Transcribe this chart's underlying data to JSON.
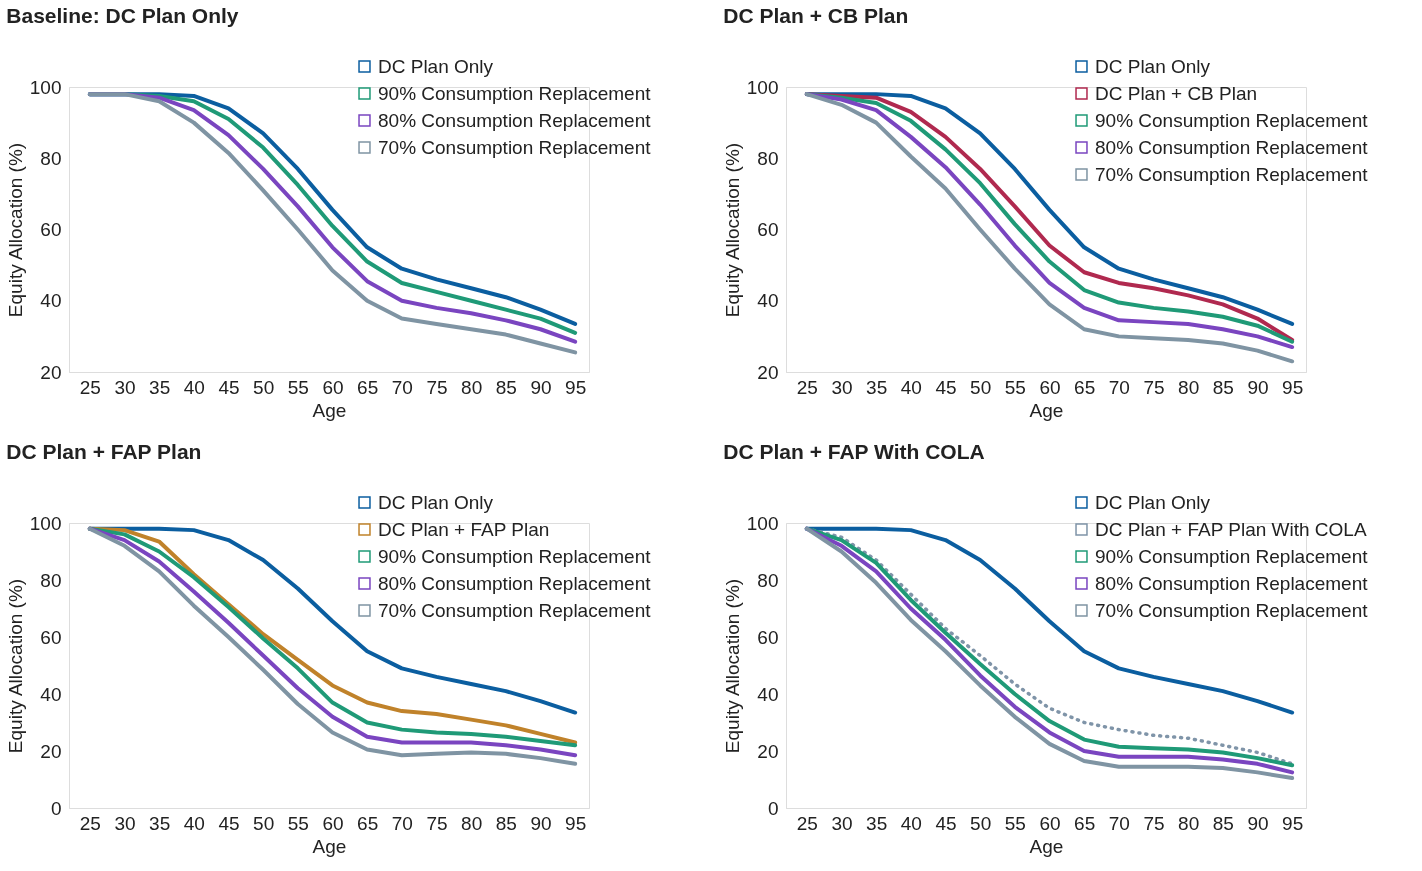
{
  "chart_data": [
    {
      "type": "line",
      "title": "Baseline: DC Plan Only",
      "xlabel": "Age",
      "ylabel": "Equity Allocation (%)",
      "x": [
        25,
        30,
        35,
        40,
        45,
        50,
        55,
        60,
        65,
        70,
        75,
        80,
        85,
        90,
        95
      ],
      "xlim": [
        22,
        97
      ],
      "xticks": [
        25,
        30,
        35,
        40,
        45,
        50,
        55,
        60,
        65,
        70,
        75,
        80,
        85,
        90,
        95
      ],
      "ylim": [
        20,
        100
      ],
      "yticks": [
        20,
        40,
        60,
        80,
        100
      ],
      "grid": false,
      "legend": "top right",
      "series": [
        {
          "name": "DC Plan Only",
          "color": "#0b5ea0",
          "values": [
            98,
            98,
            98,
            97.5,
            94,
            87,
            77,
            65.5,
            55,
            49,
            46,
            43.5,
            41,
            37.5,
            33.5
          ]
        },
        {
          "name": "90% Consumption Replacement",
          "color": "#1f9a77",
          "values": [
            98,
            98,
            97.5,
            96,
            91,
            83,
            72.5,
            61,
            51,
            45,
            42.5,
            40,
            37.5,
            35,
            31
          ]
        },
        {
          "name": "80% Consumption Replacement",
          "color": "#7a45c0",
          "values": [
            98,
            98,
            97,
            93.5,
            86.5,
            77,
            66.5,
            55,
            45.5,
            40,
            38,
            36.5,
            34.5,
            32,
            28.5
          ]
        },
        {
          "name": "70% Consumption Replacement",
          "color": "#7f94a3",
          "values": [
            98,
            98,
            96,
            90,
            81.5,
            71,
            60,
            48.5,
            40,
            35,
            33.5,
            32,
            30.5,
            28,
            25.5
          ]
        }
      ]
    },
    {
      "type": "line",
      "title": "DC Plan + CB Plan",
      "xlabel": "Age",
      "ylabel": "Equity Allocation (%)",
      "x": [
        25,
        30,
        35,
        40,
        45,
        50,
        55,
        60,
        65,
        70,
        75,
        80,
        85,
        90,
        95
      ],
      "xlim": [
        22,
        97
      ],
      "xticks": [
        25,
        30,
        35,
        40,
        45,
        50,
        55,
        60,
        65,
        70,
        75,
        80,
        85,
        90,
        95
      ],
      "ylim": [
        20,
        100
      ],
      "yticks": [
        20,
        40,
        60,
        80,
        100
      ],
      "grid": false,
      "legend": "top right",
      "series": [
        {
          "name": "DC Plan Only",
          "color": "#0b5ea0",
          "values": [
            98,
            98,
            98,
            97.5,
            94,
            87,
            77,
            65.5,
            55,
            49,
            46,
            43.5,
            41,
            37.5,
            33.5
          ]
        },
        {
          "name": "DC Plan + CB Plan",
          "color": "#b0294f",
          "values": [
            98,
            97.5,
            97,
            93,
            86,
            77,
            66.5,
            55.5,
            48,
            45,
            43.5,
            41.5,
            39,
            35,
            29
          ]
        },
        {
          "name": "90% Consumption Replacement",
          "color": "#1f9a77",
          "values": [
            98,
            97,
            95.5,
            90.5,
            82.5,
            73,
            61.5,
            51,
            43,
            39.5,
            38,
            37,
            35.5,
            33,
            28.5
          ]
        },
        {
          "name": "80% Consumption Replacement",
          "color": "#7a45c0",
          "values": [
            98,
            96.5,
            93.5,
            86,
            77.5,
            67,
            55.5,
            45,
            38,
            34.5,
            34,
            33.5,
            32,
            30,
            27
          ]
        },
        {
          "name": "70% Consumption Replacement",
          "color": "#7f94a3",
          "values": [
            98,
            95,
            90,
            80.5,
            71.5,
            60,
            49,
            39,
            32,
            30,
            29.5,
            29,
            28,
            26,
            23
          ]
        }
      ]
    },
    {
      "type": "line",
      "title": "DC Plan + FAP Plan",
      "xlabel": "Age",
      "ylabel": "Equity Allocation (%)",
      "x": [
        25,
        30,
        35,
        40,
        45,
        50,
        55,
        60,
        65,
        70,
        75,
        80,
        85,
        90,
        95
      ],
      "xlim": [
        22,
        97
      ],
      "xticks": [
        25,
        30,
        35,
        40,
        45,
        50,
        55,
        60,
        65,
        70,
        75,
        80,
        85,
        90,
        95
      ],
      "ylim": [
        0,
        100
      ],
      "yticks": [
        0,
        20,
        40,
        60,
        80,
        100
      ],
      "grid": false,
      "legend": "top right",
      "series": [
        {
          "name": "DC Plan Only",
          "color": "#0b5ea0",
          "values": [
            98,
            98,
            98,
            97.5,
            94,
            87,
            77,
            65.5,
            55,
            49,
            46,
            43.5,
            41,
            37.5,
            33.5
          ]
        },
        {
          "name": "DC Plan + FAP Plan",
          "color": "#c0822a",
          "values": [
            98,
            97.5,
            93.5,
            82,
            71.5,
            61,
            52,
            43,
            37,
            34,
            33,
            31,
            29,
            26,
            23
          ]
        },
        {
          "name": "90% Consumption Replacement",
          "color": "#1f9a77",
          "values": [
            98,
            96,
            90,
            81,
            70.5,
            59.5,
            49,
            37,
            30,
            27.5,
            26.5,
            26,
            25,
            23.5,
            22
          ]
        },
        {
          "name": "80% Consumption Replacement",
          "color": "#7a45c0",
          "values": [
            98,
            94,
            86.5,
            76,
            65,
            53.5,
            42,
            32,
            25,
            23,
            23,
            23,
            22,
            20.5,
            18.5
          ]
        },
        {
          "name": "70% Consumption Replacement",
          "color": "#7f94a3",
          "values": [
            98,
            92,
            83,
            71,
            60,
            48.5,
            36.5,
            26.5,
            20.5,
            18.5,
            19,
            19.5,
            19,
            17.5,
            15.5
          ]
        }
      ]
    },
    {
      "type": "line",
      "title": "DC Plan + FAP With COLA",
      "xlabel": "Age",
      "ylabel": "Equity Allocation (%)",
      "x": [
        25,
        30,
        35,
        40,
        45,
        50,
        55,
        60,
        65,
        70,
        75,
        80,
        85,
        90,
        95
      ],
      "xlim": [
        22,
        97
      ],
      "xticks": [
        25,
        30,
        35,
        40,
        45,
        50,
        55,
        60,
        65,
        70,
        75,
        80,
        85,
        90,
        95
      ],
      "ylim": [
        0,
        100
      ],
      "yticks": [
        0,
        20,
        40,
        60,
        80,
        100
      ],
      "grid": false,
      "legend": "top right",
      "series": [
        {
          "name": "DC Plan Only",
          "color": "#0b5ea0",
          "values": [
            98,
            98,
            98,
            97.5,
            94,
            87,
            77,
            65.5,
            55,
            49,
            46,
            43.5,
            41,
            37.5,
            33.5
          ]
        },
        {
          "name": "DC Plan + FAP Plan With COLA",
          "color": "#7f94a8",
          "line_style": "dotted",
          "values": [
            98,
            95,
            87,
            75,
            63,
            53.5,
            43.5,
            35,
            30,
            27.5,
            25.5,
            24.5,
            22,
            19.5,
            15.5
          ]
        },
        {
          "name": "90% Consumption Replacement",
          "color": "#1f9a77",
          "values": [
            98,
            94,
            86,
            73,
            61.5,
            50.5,
            40,
            30.5,
            24,
            21.5,
            21,
            20.5,
            19.5,
            17.5,
            15
          ]
        },
        {
          "name": "80% Consumption Replacement",
          "color": "#7a45c0",
          "values": [
            98,
            92,
            83,
            70,
            59,
            46.5,
            35.5,
            26.5,
            20,
            18,
            18,
            18,
            17,
            15.5,
            12.5
          ]
        },
        {
          "name": "70% Consumption Replacement",
          "color": "#7f94a3",
          "values": [
            98,
            90,
            79,
            66,
            55,
            43,
            32,
            22.5,
            16.5,
            14.5,
            14.5,
            14.5,
            14,
            12.5,
            10.5
          ]
        }
      ]
    }
  ]
}
